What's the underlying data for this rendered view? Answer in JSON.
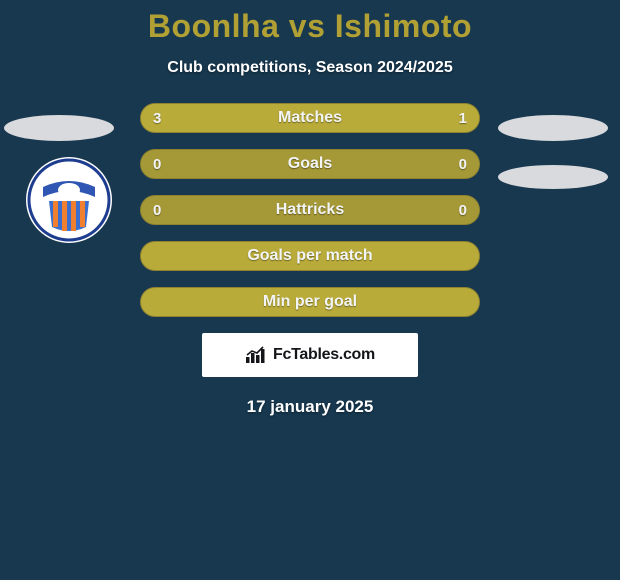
{
  "background_color": "#17384f",
  "title": {
    "text": "Boonlha vs Ishimoto",
    "color": "#b1a034",
    "fontsize": 32,
    "fontweight": 800
  },
  "subtitle": {
    "text": "Club competitions, Season 2024/2025",
    "color": "#ffffff",
    "fontsize": 16
  },
  "side_badge_color": "#d9dadd",
  "club_logo": {
    "bg": "#ffffff",
    "ring_color": "#1e3d8f",
    "banner_color": "#2f56b3",
    "stripe_a": "#f08030",
    "stripe_b": "#3a6fd0"
  },
  "bars": {
    "track_color": "#a59836",
    "fill_color": "#b9ab3a",
    "border_color": "#8e8230",
    "label_color": "#f2f4f5",
    "value_color": "#f2f4f5",
    "rows": [
      {
        "label": "Matches",
        "left_val": "3",
        "right_val": "1",
        "left_pct": 75,
        "right_pct": 25,
        "show_vals": true,
        "filled": true
      },
      {
        "label": "Goals",
        "left_val": "0",
        "right_val": "0",
        "left_pct": 0,
        "right_pct": 0,
        "show_vals": true,
        "filled": false
      },
      {
        "label": "Hattricks",
        "left_val": "0",
        "right_val": "0",
        "left_pct": 0,
        "right_pct": 0,
        "show_vals": true,
        "filled": false
      },
      {
        "label": "Goals per match",
        "left_val": "",
        "right_val": "",
        "left_pct": 0,
        "right_pct": 0,
        "show_vals": false,
        "filled": true
      },
      {
        "label": "Min per goal",
        "left_val": "",
        "right_val": "",
        "left_pct": 0,
        "right_pct": 0,
        "show_vals": false,
        "filled": true
      }
    ]
  },
  "brand": {
    "box_color": "#ffffff",
    "text": "FcTables.com",
    "text_color": "#15161a",
    "icon_color": "#15161a"
  },
  "date": {
    "text": "17 january 2025",
    "color": "#ffffff"
  }
}
